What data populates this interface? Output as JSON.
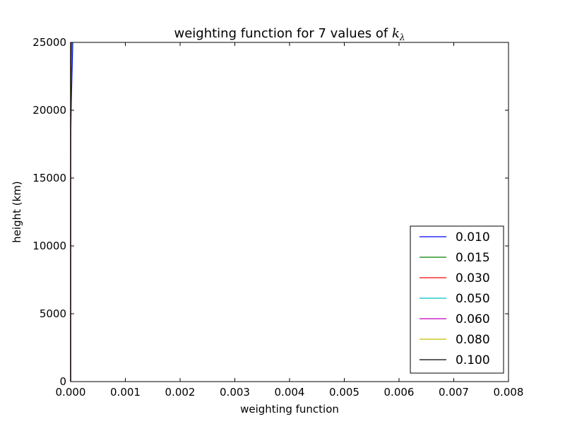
{
  "chart_data": {
    "type": "line",
    "title": "weighting function for 7 values of ",
    "title_symbol": "k",
    "title_symbol_sub": "λ",
    "xlabel": "weighting function",
    "ylabel": "height (km)",
    "xlim": [
      0.0,
      0.008
    ],
    "ylim": [
      0,
      25000
    ],
    "xticks": [
      "0.000",
      "0.001",
      "0.002",
      "0.003",
      "0.004",
      "0.005",
      "0.006",
      "0.007",
      "0.008"
    ],
    "yticks": [
      "0",
      "5000",
      "10000",
      "15000",
      "20000",
      "25000"
    ],
    "grid": false,
    "legend_position": "lower-right",
    "H": 7000,
    "series": [
      {
        "name": "0.010",
        "k": 0.01,
        "color": "#0000ff"
      },
      {
        "name": "0.015",
        "k": 0.015,
        "color": "#008000"
      },
      {
        "name": "0.030",
        "k": 0.03,
        "color": "#ff0000"
      },
      {
        "name": "0.050",
        "k": 0.05,
        "color": "#00bfbf"
      },
      {
        "name": "0.060",
        "k": 0.06,
        "color": "#bf00bf"
      },
      {
        "name": "0.080",
        "k": 0.08,
        "color": "#bfbf00"
      },
      {
        "name": "0.100",
        "k": 0.1,
        "color": "#000000"
      }
    ]
  }
}
